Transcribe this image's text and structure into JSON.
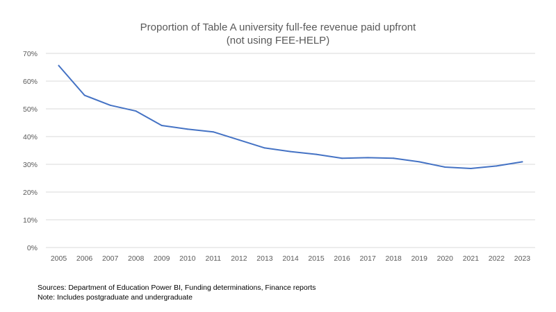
{
  "colors": {
    "line": "#4472C4",
    "grid": "#D9D9D9",
    "text": "#595959",
    "footnote": "#000000"
  },
  "chart_data": {
    "type": "line",
    "title": "Proportion of Table A university full-fee revenue paid upfront",
    "subtitle": "(not using FEE-HELP)",
    "xlabel": "",
    "ylabel": "",
    "grid": true,
    "legend": "none",
    "ylim": [
      0,
      70
    ],
    "yticks": [
      0,
      10,
      20,
      30,
      40,
      50,
      60,
      70
    ],
    "ytick_labels": [
      "0%",
      "10%",
      "20%",
      "30%",
      "40%",
      "50%",
      "60%",
      "70%"
    ],
    "categories": [
      "2005",
      "2006",
      "2007",
      "2008",
      "2009",
      "2010",
      "2011",
      "2012",
      "2013",
      "2014",
      "2015",
      "2016",
      "2017",
      "2018",
      "2019",
      "2020",
      "2021",
      "2022",
      "2023"
    ],
    "series": [
      {
        "values": [
          65.6,
          54.9,
          51.3,
          49.2,
          44.0,
          42.7,
          41.7,
          38.8,
          35.9,
          34.6,
          33.6,
          32.2,
          32.4,
          32.2,
          30.9,
          29.0,
          28.5,
          29.4,
          30.9
        ]
      }
    ]
  },
  "footnotes": {
    "sources": "Sources: Department of Education Power BI, Funding determinations,  Finance reports",
    "note": "Note: Includes postgraduate and undergraduate"
  }
}
